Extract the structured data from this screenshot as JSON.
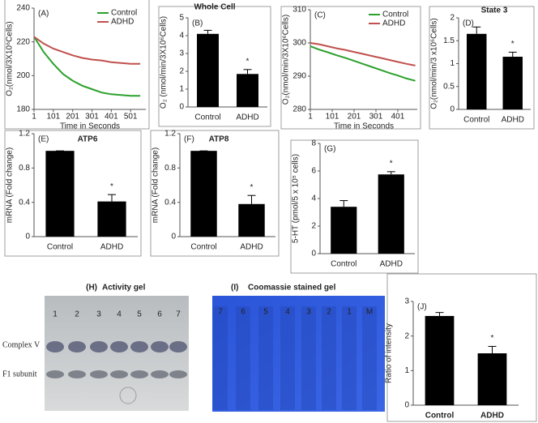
{
  "chart_data": [
    {
      "type": "line",
      "label": "(A)",
      "xlabel": "Time in Seconds",
      "ylabel": "O₂(nmol/3X10⁶Cells)",
      "x": [
        1,
        51,
        101,
        151,
        201,
        251,
        301,
        351,
        401,
        451,
        501,
        551
      ],
      "series": [
        {
          "name": "Control",
          "color": "#2ca02c",
          "values": [
            223,
            214,
            207,
            201,
            197,
            194,
            192,
            190,
            189,
            188.5,
            188,
            188
          ]
        },
        {
          "name": "ADHD",
          "color": "#c0504d",
          "values": [
            223,
            219,
            216,
            214,
            212,
            210.5,
            209.5,
            209,
            208,
            207.5,
            207,
            207
          ]
        }
      ],
      "xlim": [
        1,
        580
      ],
      "xticks": [
        1,
        101,
        201,
        301,
        401,
        501
      ],
      "ylim": [
        180,
        240
      ],
      "yticks": [
        180,
        200,
        220,
        240
      ]
    },
    {
      "type": "bar",
      "label": "(B)",
      "title": "Whole Cell",
      "ylabel": "O₂ (nmol/min/3X10⁶Cells)",
      "categories": [
        "Control",
        "ADHD"
      ],
      "values": [
        4.1,
        1.85
      ],
      "errors": [
        0.2,
        0.25
      ],
      "color": "#000000",
      "annotations": [
        "*"
      ],
      "ylim": [
        0,
        5
      ],
      "yticks": [
        0,
        1,
        2,
        3,
        4,
        5
      ]
    },
    {
      "type": "line",
      "label": "(C)",
      "xlabel": "Time in Seconds",
      "ylabel": "O₂(nmol/min/3X10⁶Cells)",
      "x": [
        1,
        41,
        81,
        121,
        161,
        201,
        241,
        281,
        321,
        361,
        401,
        441,
        481
      ],
      "series": [
        {
          "name": "Control",
          "color": "#2ca02c",
          "values": [
            299,
            298,
            297.2,
            296.3,
            295.5,
            294.6,
            293.7,
            292.8,
            291.9,
            291,
            290.2,
            289.3,
            288.6
          ]
        },
        {
          "name": "ADHD",
          "color": "#c0504d",
          "values": [
            300,
            299.6,
            299,
            298.4,
            297.9,
            297.3,
            296.7,
            296.1,
            295.5,
            294.9,
            294.3,
            293.7,
            293.2
          ]
        }
      ],
      "xlim": [
        1,
        490
      ],
      "xticks": [
        1,
        101,
        201,
        301,
        401
      ],
      "ylim": [
        280,
        310
      ],
      "yticks": [
        280,
        290,
        300,
        310
      ]
    },
    {
      "type": "bar",
      "label": "(D)",
      "title": "State 3",
      "ylabel": "O₂(nmol/min/3 x10⁶Cells)",
      "categories": [
        "Control",
        "ADHD"
      ],
      "values": [
        1.65,
        1.15
      ],
      "errors": [
        0.15,
        0.1
      ],
      "color": "#000000",
      "annotations": [
        "*"
      ],
      "ylim": [
        0,
        2
      ],
      "yticks": [
        0,
        0.5,
        1,
        1.5,
        2
      ]
    },
    {
      "type": "bar",
      "label": "(E)",
      "title": "ATP6",
      "ylabel": "mRNA (Fold change)",
      "categories": [
        "Control",
        "ADHD"
      ],
      "values": [
        1.0,
        0.41
      ],
      "errors": [
        0,
        0.08
      ],
      "color": "#000000",
      "annotations": [
        "*"
      ],
      "ylim": [
        0,
        1.2
      ],
      "yticks": [
        0,
        0.4,
        0.8,
        1.2
      ]
    },
    {
      "type": "bar",
      "label": "(F)",
      "title": "ATP8",
      "ylabel": "mRNA (Fold change)",
      "categories": [
        "Control",
        "ADHD"
      ],
      "values": [
        1.0,
        0.38
      ],
      "errors": [
        0,
        0.1
      ],
      "color": "#000000",
      "annotations": [
        "*"
      ],
      "ylim": [
        0,
        1.2
      ],
      "yticks": [
        0,
        0.4,
        0.8,
        1.2
      ]
    },
    {
      "type": "bar",
      "label": "(G)",
      "ylabel": "5-HT (pmol/5 x 10⁵ cells)",
      "categories": [
        "Control",
        "ADHD"
      ],
      "values": [
        3.4,
        5.75
      ],
      "errors": [
        0.45,
        0.2
      ],
      "color": "#000000",
      "annotations": [
        "*"
      ],
      "ylim": [
        0,
        8
      ],
      "yticks": [
        0,
        2,
        4,
        6,
        8
      ]
    },
    {
      "type": "bar",
      "label": "(J)",
      "ylabel": "Ratio of intensity",
      "categories": [
        "Control",
        "ADHD"
      ],
      "values": [
        2.58,
        1.5
      ],
      "errors": [
        0.1,
        0.2
      ],
      "color": "#000000",
      "annotations": [
        "*"
      ],
      "ylim": [
        0,
        3
      ],
      "yticks": [
        0,
        1,
        2,
        3
      ]
    }
  ],
  "gels": [
    {
      "label": "(H)",
      "title": "Activity gel",
      "lanes": [
        "1",
        "2",
        "3",
        "4",
        "5",
        "6",
        "7"
      ],
      "bands": [
        "Complex V",
        "F1 subunit"
      ]
    },
    {
      "label": "(I)",
      "title": "Coomassie stained gel",
      "lanes": [
        "7",
        "6",
        "5",
        "4",
        "3",
        "2",
        "1",
        "M"
      ]
    }
  ]
}
